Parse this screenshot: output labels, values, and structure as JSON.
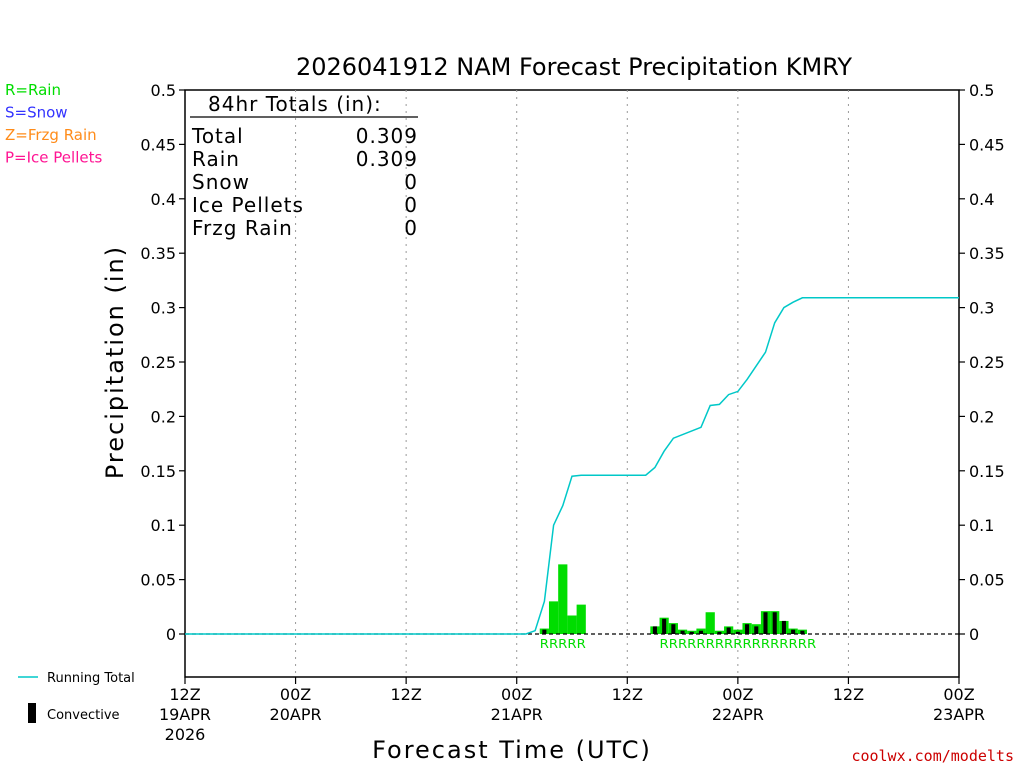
{
  "chart_data": {
    "type": "bar",
    "title": "2026041912 NAM Forecast Precipitation KMRY",
    "xlabel": "Forecast Time (UTC)",
    "ylabel": "Precipitation (in)",
    "ylim": [
      -0.04,
      0.5
    ],
    "xlim_hours": [
      0,
      84
    ],
    "y_ticks": [
      "0.5",
      "0.45",
      "0.4",
      "0.35",
      "0.3",
      "0.25",
      "0.2",
      "0.15",
      "0.1",
      "0.05",
      "0"
    ],
    "y_tick_values": [
      0.5,
      0.45,
      0.4,
      0.35,
      0.3,
      0.25,
      0.2,
      0.15,
      0.1,
      0.05,
      0
    ],
    "x_ticks": [
      {
        "hour": 0,
        "line1": "12Z",
        "line2": "19APR",
        "line3": "2026"
      },
      {
        "hour": 12,
        "line1": "00Z",
        "line2": "20APR",
        "line3": ""
      },
      {
        "hour": 24,
        "line1": "12Z",
        "line2": "",
        "line3": ""
      },
      {
        "hour": 36,
        "line1": "00Z",
        "line2": "21APR",
        "line3": ""
      },
      {
        "hour": 48,
        "line1": "12Z",
        "line2": "",
        "line3": ""
      },
      {
        "hour": 60,
        "line1": "00Z",
        "line2": "22APR",
        "line3": ""
      },
      {
        "hour": 72,
        "line1": "12Z",
        "line2": "",
        "line3": ""
      },
      {
        "hour": 84,
        "line1": "00Z",
        "line2": "23APR",
        "line3": ""
      }
    ],
    "series": [
      {
        "name": "Rain",
        "color": "#00dd00",
        "hours": [
          39,
          40,
          41,
          42,
          43,
          51,
          52,
          53,
          54,
          55,
          56,
          57,
          58,
          59,
          60,
          61,
          62,
          63,
          64,
          65,
          66,
          67,
          68
        ],
        "values": [
          0.005,
          0.03,
          0.064,
          0.017,
          0.027,
          0.007,
          0.015,
          0.01,
          0.004,
          0.003,
          0.005,
          0.02,
          0.003,
          0.007,
          0.004,
          0.01,
          0.009,
          0.021,
          0.021,
          0.012,
          0.005,
          0.004,
          0.0
        ]
      },
      {
        "name": "Convective",
        "color": "#000000",
        "hours": [
          39,
          51,
          52,
          53,
          54,
          55,
          56,
          58,
          59,
          60,
          61,
          62,
          63,
          64,
          65,
          66,
          67
        ],
        "values": [
          0.004,
          0.007,
          0.014,
          0.009,
          0.003,
          0.002,
          0.003,
          0.002,
          0.006,
          0.002,
          0.009,
          0.007,
          0.02,
          0.02,
          0.012,
          0.004,
          0.003
        ]
      },
      {
        "name": "Running Total",
        "color": "#00c8c8",
        "hours": [
          0,
          37,
          38,
          39,
          40,
          41,
          42,
          43,
          44,
          45,
          50,
          51,
          52,
          53,
          56,
          57,
          58,
          59,
          60,
          61,
          63,
          64,
          65,
          66,
          67,
          68,
          84
        ],
        "values": [
          0,
          0,
          0.003,
          0.03,
          0.1,
          0.118,
          0.145,
          0.146,
          0.146,
          0.146,
          0.146,
          0.153,
          0.168,
          0.18,
          0.19,
          0.21,
          0.211,
          0.22,
          0.223,
          0.234,
          0.259,
          0.286,
          0.3,
          0.305,
          0.309,
          0.309,
          0.309
        ]
      }
    ],
    "ptype_rows": [
      {
        "start_hour": 39,
        "text": "RRRRR"
      },
      {
        "start_hour": 52,
        "text": "RRRRRRRRRRRRRRRRR"
      }
    ]
  },
  "totals": {
    "heading": "84hr Totals (in):",
    "rows": [
      {
        "label": "Total",
        "value": "0.309"
      },
      {
        "label": "Rain",
        "value": "0.309"
      },
      {
        "label": "Snow",
        "value": "0"
      },
      {
        "label": "Ice Pellets",
        "value": "0"
      },
      {
        "label": "Frzg Rain",
        "value": "0"
      }
    ]
  },
  "ptype_legend": [
    {
      "text": "R=Rain",
      "color": "#00dd00"
    },
    {
      "text": "S=Snow",
      "color": "#3333ff"
    },
    {
      "text": "Z=Frzg Rain",
      "color": "#ff8c1a"
    },
    {
      "text": "P=Ice Pellets",
      "color": "#ff1493"
    }
  ],
  "line_legend": {
    "running_total": "Running Total",
    "convective": "Convective"
  },
  "credit": "coolwx.com/modelts",
  "colors": {
    "rain": "#00dd00",
    "convective": "#000000",
    "running_total": "#00c8c8",
    "credit": "#cc0000"
  }
}
